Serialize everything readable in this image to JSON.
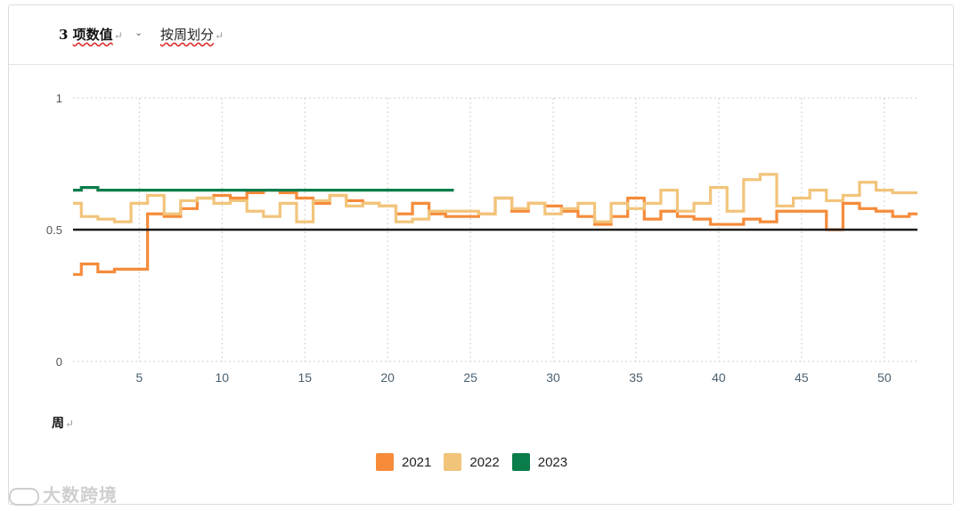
{
  "header": {
    "number": "3",
    "title": "项数值",
    "return_mark": "↵",
    "dropdown_icon": "chevron-down-icon",
    "subtitle": "按周划分"
  },
  "watermark": {
    "text": "大数跨境",
    "icon": "logo-icon"
  },
  "chart_data": {
    "type": "line",
    "step": true,
    "x_label": "周",
    "xlim": [
      1,
      52
    ],
    "ylim": [
      0,
      1
    ],
    "x_ticks": [
      5,
      10,
      15,
      20,
      25,
      30,
      35,
      40,
      45,
      50
    ],
    "y_ticks": [
      0,
      0.5,
      1
    ],
    "y_tick_labels": [
      "0",
      "0.5",
      "1"
    ],
    "grid": true,
    "reference_line": {
      "y": 0.5,
      "color": "#1a1a1a"
    },
    "legend_position": "bottom-center",
    "series": [
      {
        "name": "2021",
        "color": "#f68b3a",
        "values": [
          0.33,
          0.37,
          0.34,
          0.35,
          0.35,
          0.56,
          0.55,
          0.58,
          0.62,
          0.63,
          0.62,
          0.64,
          0.65,
          0.64,
          0.62,
          0.6,
          0.63,
          0.61,
          0.6,
          0.59,
          0.56,
          0.6,
          0.56,
          0.55,
          0.55,
          0.56,
          0.62,
          0.57,
          0.6,
          0.59,
          0.57,
          0.55,
          0.52,
          0.55,
          0.62,
          0.54,
          0.57,
          0.55,
          0.54,
          0.52,
          0.52,
          0.54,
          0.53,
          0.57,
          0.57,
          0.57,
          0.5,
          0.6,
          0.58,
          0.57,
          0.55,
          0.56
        ]
      },
      {
        "name": "2022",
        "color": "#f2c47a",
        "values": [
          0.6,
          0.55,
          0.54,
          0.53,
          0.6,
          0.63,
          0.56,
          0.61,
          0.62,
          0.6,
          0.61,
          0.57,
          0.55,
          0.6,
          0.53,
          0.61,
          0.63,
          0.59,
          0.6,
          0.59,
          0.53,
          0.54,
          0.57,
          0.57,
          0.57,
          0.56,
          0.62,
          0.58,
          0.6,
          0.56,
          0.58,
          0.6,
          0.53,
          0.6,
          0.58,
          0.6,
          0.65,
          0.57,
          0.6,
          0.66,
          0.57,
          0.69,
          0.71,
          0.59,
          0.62,
          0.65,
          0.61,
          0.63,
          0.68,
          0.65,
          0.64,
          0.64
        ]
      },
      {
        "name": "2023",
        "color": "#0b7d4a",
        "values": [
          0.65,
          0.66,
          0.65,
          0.65,
          0.65,
          0.65,
          0.65,
          0.65,
          0.65,
          0.65,
          0.65,
          0.65,
          0.65,
          0.65,
          0.65,
          0.65,
          0.65,
          0.65,
          0.65,
          0.65,
          0.65,
          0.65,
          0.65,
          0.65
        ]
      }
    ]
  }
}
